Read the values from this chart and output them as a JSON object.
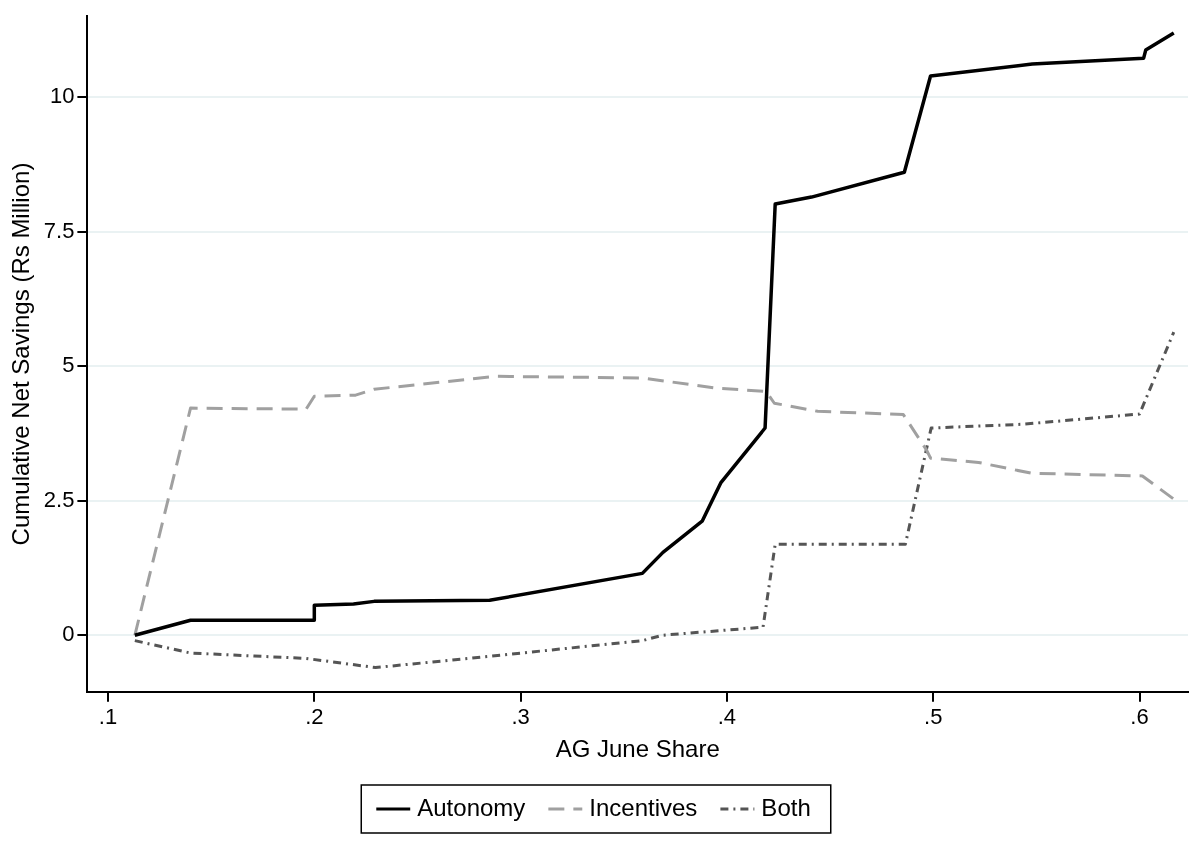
{
  "chart_data": {
    "type": "line",
    "xlabel": "AG June Share",
    "ylabel": "Cumulative Net Savings (Rs Million)",
    "xlim": [
      0.09,
      0.6235
    ],
    "ylim": [
      -1.05,
      11.5
    ],
    "xticks": [
      {
        "value": 0.1,
        "label": ".1"
      },
      {
        "value": 0.2,
        "label": ".2"
      },
      {
        "value": 0.3,
        "label": ".3"
      },
      {
        "value": 0.4,
        "label": ".4"
      },
      {
        "value": 0.5,
        "label": ".5"
      },
      {
        "value": 0.6,
        "label": ".6"
      }
    ],
    "yticks": [
      0,
      2.5,
      5,
      7.5,
      10
    ],
    "grid": "y",
    "legend": "bottom",
    "marker": "none",
    "series": [
      {
        "name": "Autonomy",
        "color": "#000000",
        "line_style": "solid",
        "x": [
          0.113,
          0.14,
          0.2,
          0.2,
          0.219,
          0.229,
          0.285,
          0.359,
          0.369,
          0.388,
          0.397,
          0.4185,
          0.4234,
          0.441,
          0.486,
          0.4987,
          0.548,
          0.602,
          0.603,
          0.6166
        ],
        "values": [
          0,
          0.28,
          0.28,
          0.56,
          0.58,
          0.63,
          0.65,
          1.15,
          1.54,
          2.12,
          2.83,
          3.85,
          8.01,
          8.14,
          8.6,
          10.39,
          10.61,
          10.72,
          10.87,
          11.19
        ]
      },
      {
        "name": "Incentives",
        "color": "#a0a0a0",
        "line_style": "dashed",
        "x": [
          0.113,
          0.14,
          0.196,
          0.2,
          0.22,
          0.229,
          0.288,
          0.359,
          0.395,
          0.419,
          0.423,
          0.444,
          0.4855,
          0.4968,
          0.4987,
          0.522,
          0.5476,
          0.6014,
          0.6166
        ],
        "values": [
          0,
          4.22,
          4.2,
          4.44,
          4.46,
          4.57,
          4.81,
          4.78,
          4.59,
          4.53,
          4.31,
          4.16,
          4.1,
          3.44,
          3.29,
          3.21,
          3.01,
          2.96,
          2.53
        ]
      },
      {
        "name": "Both",
        "color": "#555555",
        "line_style": "dotted",
        "x": [
          0.113,
          0.14,
          0.196,
          0.2297,
          0.285,
          0.359,
          0.3686,
          0.4175,
          0.4234,
          0.4865,
          0.499,
          0.5433,
          0.6,
          0.6166
        ],
        "values": [
          -0.1,
          -0.33,
          -0.43,
          -0.6,
          -0.39,
          -0.1,
          0,
          0.15,
          1.69,
          1.69,
          3.85,
          3.92,
          4.11,
          5.63
        ]
      }
    ]
  }
}
